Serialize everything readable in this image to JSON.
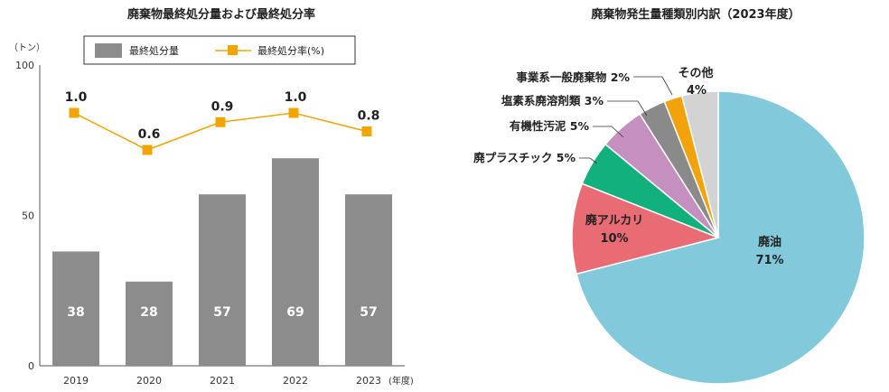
{
  "chart_data": [
    {
      "type": "bar",
      "title": "廃棄物最終処分量および最終処分率",
      "y_unit": "（トン）",
      "x_unit": "(年度)",
      "categories": [
        "2019",
        "2020",
        "2021",
        "2022",
        "2023"
      ],
      "ylim": [
        0,
        100
      ],
      "yticks": [
        "0",
        "50",
        "100"
      ],
      "series": [
        {
          "name": "最終処分量",
          "kind": "bar",
          "color": "#8c8c8c",
          "values": [
            38,
            28,
            57,
            69,
            57
          ],
          "labels": [
            "38",
            "28",
            "57",
            "69",
            "57"
          ]
        },
        {
          "name": "最終処分率(%)",
          "kind": "line",
          "color": "#f0a500",
          "values": [
            1.0,
            0.6,
            0.9,
            1.0,
            0.8
          ],
          "labels": [
            "1.0",
            "0.6",
            "0.9",
            "1.0",
            "0.8"
          ]
        }
      ],
      "grid": false,
      "legend": "top"
    },
    {
      "type": "pie",
      "title": "廃棄物発生量種類別内訳（2023年度）",
      "slices": [
        {
          "label": "廃油",
          "value": 71,
          "value_text": "71%",
          "color": "#82c9dc"
        },
        {
          "label": "廃アルカリ",
          "value": 10,
          "value_text": "10%",
          "color": "#e96b73"
        },
        {
          "label": "廃プラスチック 5%",
          "value": 5,
          "color": "#12b07c"
        },
        {
          "label": "有機性汚泥 5%",
          "value": 5,
          "color": "#c58fc0"
        },
        {
          "label": "塩素系廃溶剤類 3%",
          "value": 3,
          "color": "#8a8a8a"
        },
        {
          "label": "事業系一般廃棄物 2%",
          "value": 2,
          "color": "#f2a20a"
        },
        {
          "label": "その他",
          "value": 4,
          "value_text": "4%",
          "color": "#d3d3d3"
        }
      ]
    }
  ]
}
